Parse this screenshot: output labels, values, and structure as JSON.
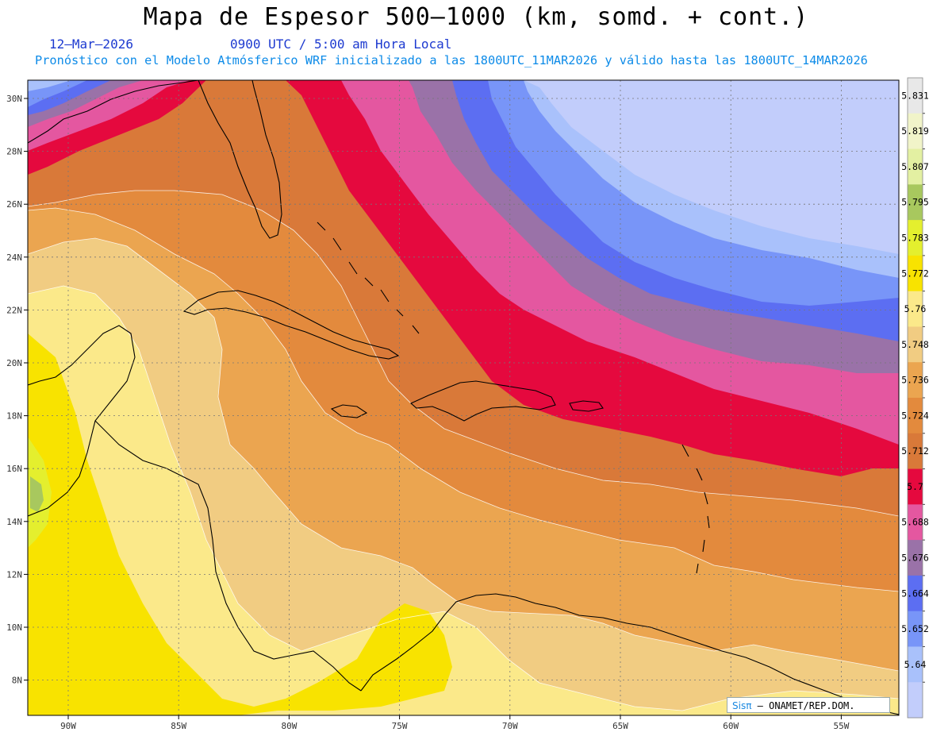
{
  "title": "Mapa de Espesor 500—1000 (km, somd. + cont.)",
  "date": "12—Mar—2026",
  "time": "0900 UTC / 5:00 am Hora Local",
  "subtitle": "Pronóstico con el Modelo Atmósferico WRF inicializado a las 1800UTC_11MAR2026 y válido hasta las  1800UTC_14MAR2026",
  "credit": {
    "brand": "Sisπ",
    "text": "— ONAMET/REP.DOM."
  },
  "lat_labels": [
    "30N",
    "28N",
    "26N",
    "24N",
    "22N",
    "20N",
    "18N",
    "16N",
    "14N",
    "12N",
    "10N",
    "8N"
  ],
  "lon_labels": [
    "90W",
    "85W",
    "80W",
    "75W",
    "70W",
    "65W",
    "60W",
    "55W"
  ],
  "colorbar": {
    "labels": [
      "5.831",
      "5.819",
      "5.807",
      "5.795",
      "5.783",
      "5.772",
      "5.76",
      "5.748",
      "5.736",
      "5.724",
      "5.712",
      "5.7",
      "5.688",
      "5.676",
      "5.664",
      "5.652",
      "5.64"
    ],
    "colors": [
      "#e8e8e8",
      "#f1f4c9",
      "#e3f0a2",
      "#a8c85e",
      "#e4ef2e",
      "#f8e300",
      "#fbe98a",
      "#f1cc82",
      "#eba550",
      "#e38a3d",
      "#d97939",
      "#e5093e",
      "#e457a0",
      "#9a72a8",
      "#5c6ef2",
      "#7895f8",
      "#a9c1fb",
      "#c2cdfb"
    ]
  },
  "map_colors": {
    "c5748": "#f1cc82",
    "c5736": "#eba550",
    "c5724": "#e38a3d",
    "c5712": "#d97939",
    "c5700": "#e5093e",
    "c5688": "#e457a0",
    "c5676": "#9a72a8",
    "c5664": "#5c6ef2",
    "c5652": "#7895f8",
    "c5640": "#a9c1fb",
    "c5628": "#c2cdfb",
    "c5760": "#fbe98a",
    "c5772": "#f8e300",
    "c5783": "#e4ef2e",
    "c5795": "#a8c85e"
  }
}
